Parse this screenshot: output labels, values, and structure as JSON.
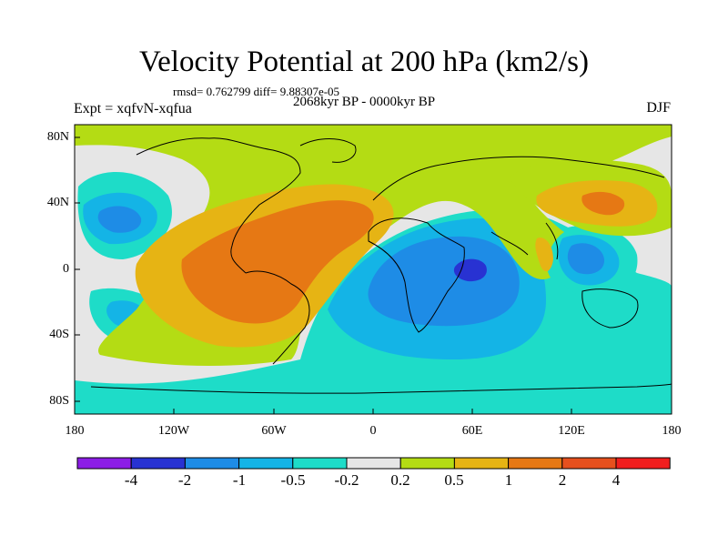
{
  "figure": {
    "title": "Velocity Potential at 200 hPa (km2/s)",
    "stats": "rmsd= 0.762799 diff= 9.88307e-05",
    "experiment": "Expt = xqfvN-xqfua",
    "period": "2068kyr BP - 0000kyr BP",
    "season": "DJF"
  },
  "axes": {
    "y_ticks": [
      "80N",
      "40N",
      "0",
      "40S",
      "80S"
    ],
    "x_ticks": [
      "180",
      "120W",
      "60W",
      "0",
      "60E",
      "120E",
      "180"
    ]
  },
  "colorbar": {
    "labels": [
      "-4",
      "-2",
      "-1",
      "-0.5",
      "-0.2",
      "0.2",
      "0.5",
      "1",
      "2",
      "4"
    ],
    "colors": [
      "#8c1ee6",
      "#2832d2",
      "#1e8ce6",
      "#14b4e6",
      "#1edcc8",
      "#e6e6e6",
      "#b4dc14",
      "#e6b414",
      "#e67814",
      "#e6501e",
      "#f01e1e"
    ]
  },
  "map": {
    "background_color": "#e6e6e6",
    "positive_region_color": "#e67814",
    "negative_region_color": "#1e8ce6"
  }
}
